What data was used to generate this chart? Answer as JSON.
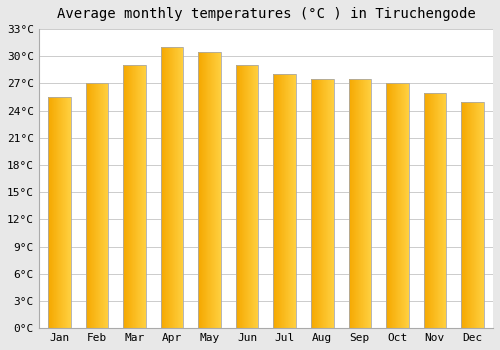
{
  "title": "Average monthly temperatures (°C ) in Tiruchengode",
  "months": [
    "Jan",
    "Feb",
    "Mar",
    "Apr",
    "May",
    "Jun",
    "Jul",
    "Aug",
    "Sep",
    "Oct",
    "Nov",
    "Dec"
  ],
  "values": [
    25.5,
    27.0,
    29.0,
    31.0,
    30.5,
    29.0,
    28.0,
    27.5,
    27.5,
    27.0,
    26.0,
    25.0
  ],
  "bar_color_left": "#F5A800",
  "bar_color_right": "#FFD040",
  "background_color": "#E8E8E8",
  "plot_bg_color": "#FFFFFF",
  "grid_color": "#CCCCCC",
  "border_color": "#AAAAAA",
  "title_fontsize": 10,
  "tick_fontsize": 8,
  "ylim": [
    0,
    33
  ],
  "yticks": [
    0,
    3,
    6,
    9,
    12,
    15,
    18,
    21,
    24,
    27,
    30,
    33
  ],
  "ytick_labels": [
    "0°C",
    "3°C",
    "6°C",
    "9°C",
    "12°C",
    "15°C",
    "18°C",
    "21°C",
    "24°C",
    "27°C",
    "30°C",
    "33°C"
  ]
}
